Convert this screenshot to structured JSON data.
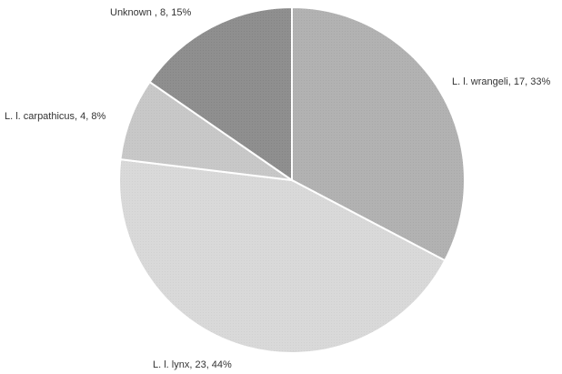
{
  "chart_data": {
    "type": "pie",
    "title": "",
    "slices": [
      {
        "label": "L. l. wrangeli, 17, 33%",
        "name": "L. l. wrangeli",
        "value": 17,
        "percent": 33,
        "color": "#b2b2b2"
      },
      {
        "label": "L. l. lynx, 23, 44%",
        "name": "L. l. lynx",
        "value": 23,
        "percent": 44,
        "color": "#d9d9d9"
      },
      {
        "label": "L. l. carpathicus, 4, 8%",
        "name": "L. l. carpathicus",
        "value": 4,
        "percent": 8,
        "color": "#c8c8c8"
      },
      {
        "label": "Unknown , 8, 15%",
        "name": "Unknown",
        "value": 8,
        "percent": 15,
        "color": "#8f8f8f"
      }
    ]
  }
}
